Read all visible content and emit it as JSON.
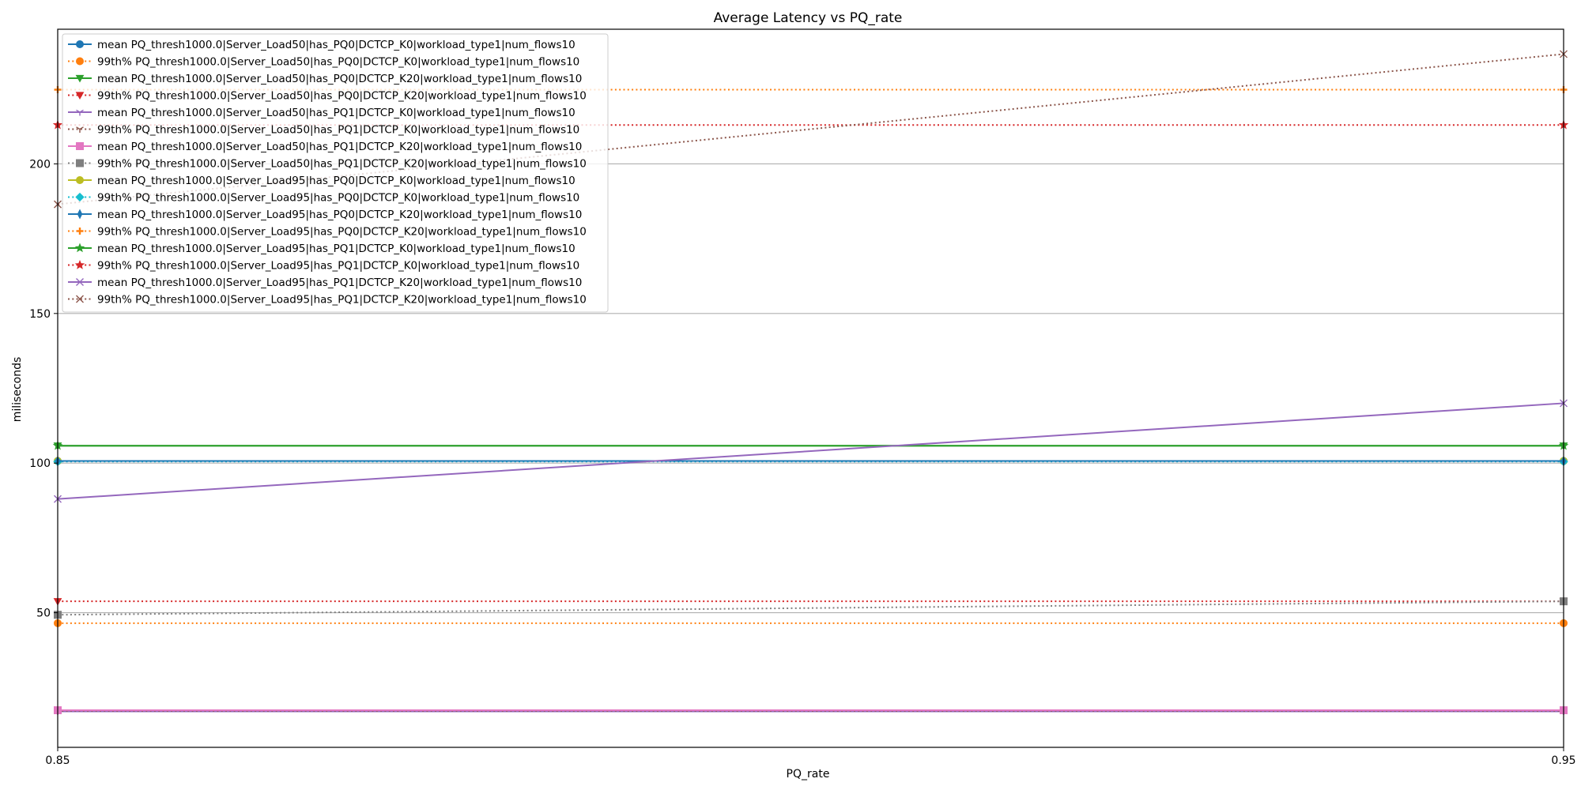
{
  "chart_data": {
    "type": "line",
    "title": "Average Latency vs PQ_rate",
    "xlabel": "PQ_rate",
    "ylabel": "miliseconds",
    "x": [
      0.85,
      0.95
    ],
    "xlim": [
      0.85,
      0.95
    ],
    "ylim": [
      5,
      245
    ],
    "xticks": [
      "0.85",
      "0.95"
    ],
    "yticks": [
      50,
      100,
      150,
      200
    ],
    "grid": "y",
    "legend_position": "top-left",
    "series": [
      {
        "name": "mean PQ_thresh1000.0|Server_Load50|has_PQ0|DCTCP_K0|workload_type1|num_flows10",
        "values": [
          100.7,
          100.7
        ],
        "color": "#1f77b4",
        "style": "solid",
        "marker": "circle"
      },
      {
        "name": "99th% PQ_thresh1000.0|Server_Load50|has_PQ0|DCTCP_K0|workload_type1|num_flows10",
        "values": [
          46.5,
          46.5
        ],
        "color": "#ff7f0e",
        "style": "dotted",
        "marker": "circle"
      },
      {
        "name": "mean PQ_thresh1000.0|Server_Load50|has_PQ0|DCTCP_K20|workload_type1|num_flows10",
        "values": [
          105.8,
          105.8
        ],
        "color": "#2ca02c",
        "style": "solid",
        "marker": "triangle-down"
      },
      {
        "name": "99th% PQ_thresh1000.0|Server_Load50|has_PQ0|DCTCP_K20|workload_type1|num_flows10",
        "values": [
          53.8,
          53.8
        ],
        "color": "#d62728",
        "style": "dotted",
        "marker": "triangle-down"
      },
      {
        "name": "mean PQ_thresh1000.0|Server_Load50|has_PQ1|DCTCP_K0|workload_type1|num_flows10",
        "values": [
          17.0,
          17.0
        ],
        "color": "#9467bd",
        "style": "solid",
        "marker": "tri-down"
      },
      {
        "name": "99th% PQ_thresh1000.0|Server_Load50|has_PQ1|DCTCP_K0|workload_type1|num_flows10",
        "values": [
          17.2,
          17.2
        ],
        "color": "#8c564b",
        "style": "dotted",
        "marker": "tri-down"
      },
      {
        "name": "mean PQ_thresh1000.0|Server_Load50|has_PQ1|DCTCP_K20|workload_type1|num_flows10",
        "values": [
          17.4,
          17.4
        ],
        "color": "#e377c2",
        "style": "solid",
        "marker": "square"
      },
      {
        "name": "99th% PQ_thresh1000.0|Server_Load50|has_PQ1|DCTCP_K20|workload_type1|num_flows10",
        "values": [
          49.3,
          53.8
        ],
        "color": "#7f7f7f",
        "style": "dotted",
        "marker": "square"
      },
      {
        "name": "mean PQ_thresh1000.0|Server_Load95|has_PQ0|DCTCP_K0|workload_type1|num_flows10",
        "values": [
          100.7,
          100.7
        ],
        "color": "#bcbd22",
        "style": "solid",
        "marker": "circle"
      },
      {
        "name": "99th% PQ_thresh1000.0|Server_Load95|has_PQ0|DCTCP_K0|workload_type1|num_flows10",
        "values": [
          100.5,
          100.5
        ],
        "color": "#17becf",
        "style": "dotted",
        "marker": "diamond"
      },
      {
        "name": "mean PQ_thresh1000.0|Server_Load95|has_PQ0|DCTCP_K20|workload_type1|num_flows10",
        "values": [
          100.7,
          100.7
        ],
        "color": "#1f77b4",
        "style": "solid",
        "marker": "thin-diamond"
      },
      {
        "name": "99th% PQ_thresh1000.0|Server_Load95|has_PQ0|DCTCP_K20|workload_type1|num_flows10",
        "values": [
          224.8,
          224.8
        ],
        "color": "#ff7f0e",
        "style": "dotted",
        "marker": "plus"
      },
      {
        "name": "mean PQ_thresh1000.0|Server_Load95|has_PQ1|DCTCP_K0|workload_type1|num_flows10",
        "values": [
          105.8,
          105.8
        ],
        "color": "#2ca02c",
        "style": "solid",
        "marker": "star"
      },
      {
        "name": "99th% PQ_thresh1000.0|Server_Load95|has_PQ1|DCTCP_K0|workload_type1|num_flows10",
        "values": [
          213.0,
          213.0
        ],
        "color": "#d62728",
        "style": "dotted",
        "marker": "star"
      },
      {
        "name": "mean PQ_thresh1000.0|Server_Load95|has_PQ1|DCTCP_K20|workload_type1|num_flows10",
        "values": [
          88.0,
          120.0
        ],
        "color": "#9467bd",
        "style": "solid",
        "marker": "x"
      },
      {
        "name": "99th% PQ_thresh1000.0|Server_Load95|has_PQ1|DCTCP_K20|workload_type1|num_flows10",
        "values": [
          186.5,
          236.7
        ],
        "color": "#8c564b",
        "style": "dotted",
        "marker": "x"
      }
    ]
  }
}
